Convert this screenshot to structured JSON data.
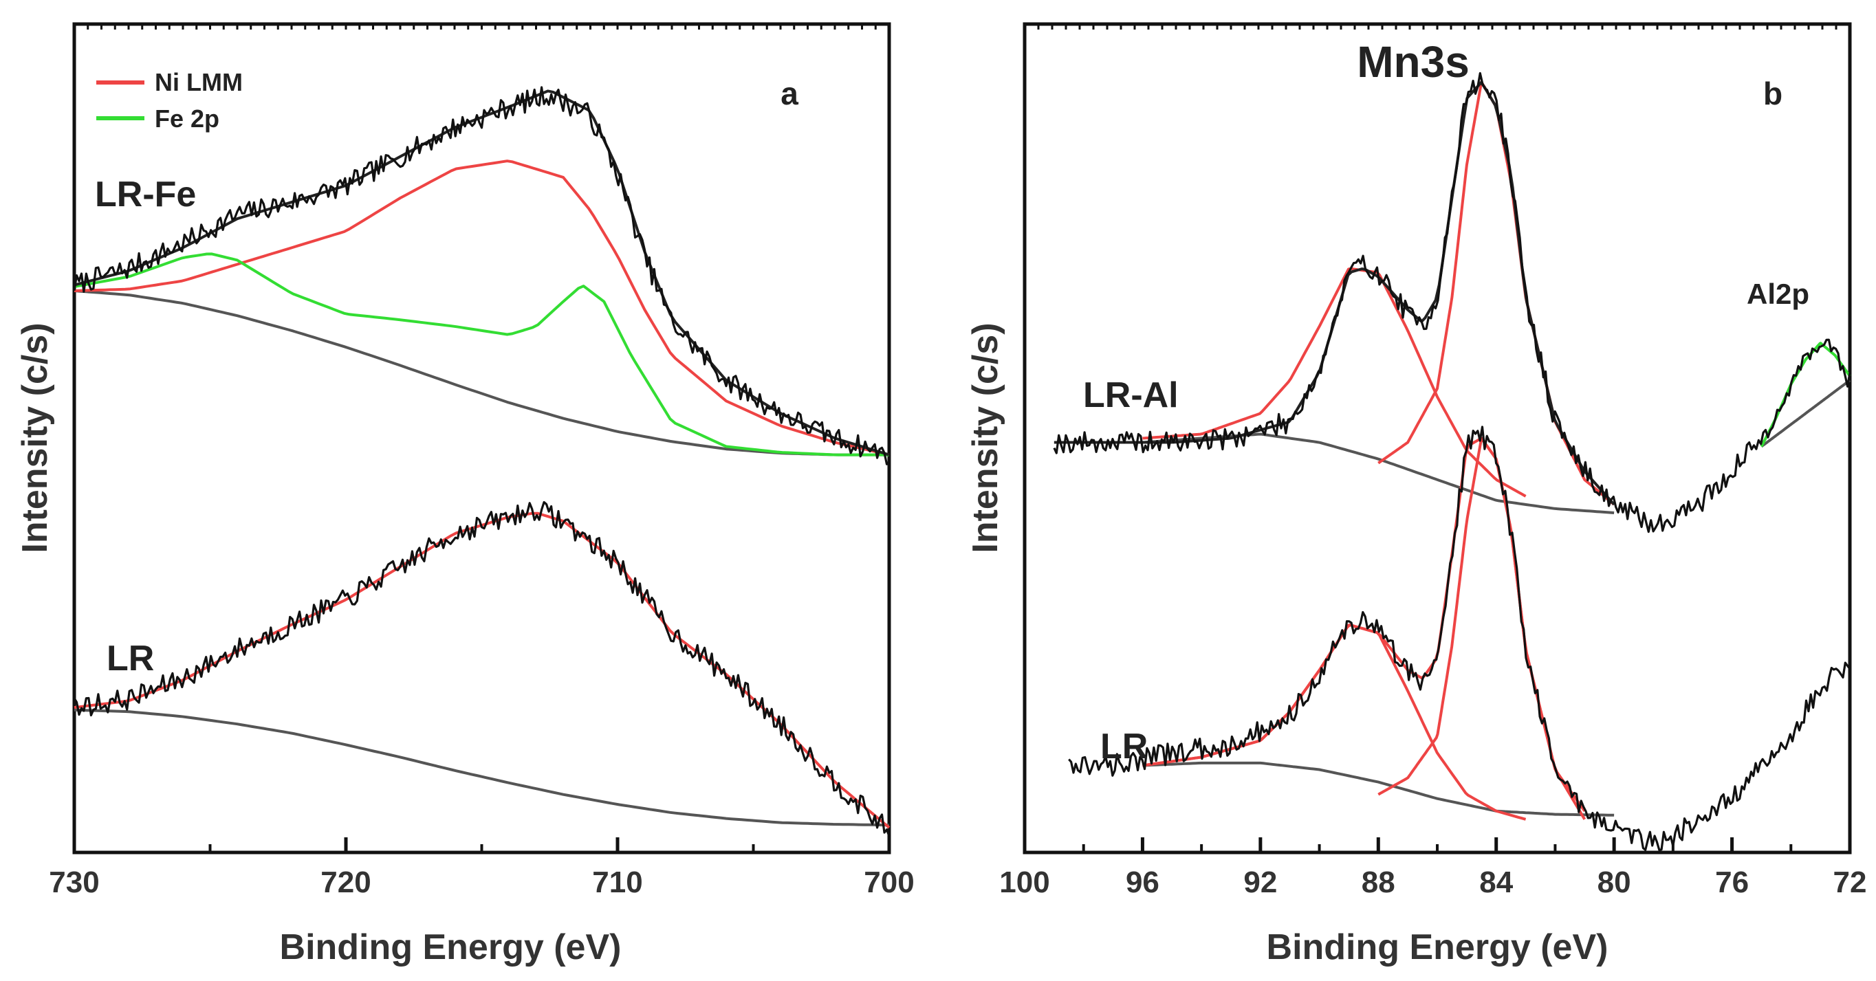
{
  "colors": {
    "data": "#111111",
    "fit": "#222222",
    "ni_lmm": "#ee4444",
    "fe_2p": "#33dd33",
    "background": "#555555",
    "frame": "#111111"
  },
  "chart_data": [
    {
      "type": "line",
      "panel": "a",
      "xlabel": "Binding Energy (eV)",
      "ylabel": "Intensity (c/s)",
      "xlim": [
        730,
        700
      ],
      "ylim": [
        0,
        100
      ],
      "xticks": [
        730,
        720,
        710,
        700
      ],
      "xtick_labels": [
        "730",
        "720",
        "710",
        "700"
      ],
      "legend": {
        "position": "top-left",
        "entries": [
          {
            "name": "Ni LMM",
            "color": "#ee4444"
          },
          {
            "name": "Fe 2p",
            "color": "#33dd33"
          }
        ]
      },
      "samples": [
        {
          "name": "LR-Fe",
          "offset": 44.5
        },
        {
          "name": "LR",
          "offset": 2.6
        }
      ],
      "series": [
        {
          "name": "LR-Fe data",
          "role": "data",
          "color": "#111111",
          "x": [
            730,
            728,
            726,
            724,
            722,
            720,
            718,
            716,
            714,
            712.5,
            711,
            710,
            709,
            708,
            706,
            704,
            702,
            700
          ],
          "y": [
            68.5,
            70.5,
            73.5,
            77,
            78.5,
            80.5,
            84,
            87.5,
            90,
            91.5,
            89,
            82,
            72,
            64,
            57,
            53,
            50,
            48
          ]
        },
        {
          "name": "LR-Fe fit",
          "role": "fit",
          "color": "#222222",
          "x": [
            730,
            728,
            726,
            724,
            722,
            720,
            718,
            716,
            714,
            712.5,
            711,
            710,
            709,
            708,
            706,
            704,
            702,
            700
          ],
          "y": [
            68.5,
            70.2,
            73,
            76.5,
            78.5,
            80.5,
            84,
            87.5,
            90,
            92,
            89.5,
            82.5,
            72.5,
            64.5,
            57,
            53,
            50,
            48
          ]
        },
        {
          "name": "Ni LMM",
          "role": "component",
          "color": "#ee4444",
          "x": [
            730,
            728,
            726,
            724,
            722,
            720,
            718,
            716,
            714,
            712,
            711,
            710,
            709,
            708,
            706,
            704,
            702,
            700
          ],
          "y": [
            67.8,
            68,
            69,
            71,
            73,
            75,
            79,
            82.5,
            83.5,
            81.5,
            77.5,
            72,
            65.5,
            60,
            54.5,
            51.5,
            49.5,
            48
          ]
        },
        {
          "name": "Fe 2p",
          "role": "component",
          "color": "#33dd33",
          "x": [
            730,
            728,
            726,
            725,
            724,
            722,
            720,
            718,
            716,
            714,
            713,
            712,
            711.3,
            710.5,
            709.5,
            708,
            706,
            704,
            702,
            700
          ],
          "y": [
            68.3,
            69.5,
            71.8,
            72.3,
            71.5,
            67.5,
            65,
            64.3,
            63.5,
            62.5,
            63.5,
            66.5,
            68.5,
            66.5,
            60,
            52,
            49,
            48.3,
            48,
            48
          ]
        },
        {
          "name": "LR-Fe background",
          "role": "background",
          "color": "#555555",
          "x": [
            730,
            728,
            726,
            724,
            722,
            720,
            718,
            716,
            714,
            712,
            710,
            708,
            706,
            704,
            702,
            700
          ],
          "y": [
            67.8,
            67.3,
            66.3,
            64.8,
            63,
            61,
            58.8,
            56.5,
            54.3,
            52.4,
            50.8,
            49.6,
            48.7,
            48.2,
            48,
            48
          ]
        },
        {
          "name": "LR data",
          "role": "data",
          "color": "#111111",
          "x": [
            730,
            728,
            726,
            724,
            722,
            720,
            718,
            716,
            714,
            713,
            712,
            710,
            708,
            706,
            704,
            702,
            700
          ],
          "y": [
            17.5,
            18.5,
            21,
            24.5,
            27.5,
            30.5,
            34.5,
            38.5,
            40.5,
            41.5,
            40,
            35,
            26.5,
            21.5,
            15.5,
            8.5,
            2.5
          ]
        },
        {
          "name": "LR fit",
          "role": "fit",
          "color": "#ee4444",
          "x": [
            730,
            728,
            726,
            724,
            722,
            720,
            718,
            716,
            714,
            713,
            712,
            710,
            708,
            706,
            704,
            702,
            700
          ],
          "y": [
            17.5,
            18.3,
            20.8,
            24.3,
            27.5,
            30.5,
            34.5,
            38.5,
            40.5,
            41,
            40,
            35,
            26.5,
            21.5,
            15.5,
            8.5,
            3
          ]
        },
        {
          "name": "LR background",
          "role": "background",
          "color": "#555555",
          "x": [
            730,
            728,
            726,
            724,
            722,
            720,
            718,
            716,
            714,
            712,
            710,
            708,
            706,
            704,
            702,
            700
          ],
          "y": [
            17.2,
            17,
            16.4,
            15.5,
            14.4,
            13,
            11.5,
            9.9,
            8.4,
            7,
            5.8,
            4.8,
            4.1,
            3.6,
            3.4,
            3.3
          ]
        }
      ]
    },
    {
      "type": "line",
      "panel": "b",
      "title": "Mn3s",
      "xlabel": "Binding Energy (eV)",
      "ylabel": "Intensity (c/s)",
      "xlim": [
        100,
        72
      ],
      "ylim": [
        0,
        100
      ],
      "xticks": [
        100,
        96,
        92,
        88,
        84,
        80,
        76,
        72
      ],
      "xtick_labels": [
        "100",
        "96",
        "92",
        "88",
        "84",
        "80",
        "76",
        "72"
      ],
      "samples": [
        {
          "name": "LR-Al",
          "offset": 49.5
        },
        {
          "name": "LR",
          "offset": 6
        }
      ],
      "annotations": [
        {
          "text": "Al2p",
          "x": 73.2
        }
      ],
      "series": [
        {
          "name": "LR-Al data",
          "role": "data",
          "color": "#111111",
          "x": [
            99,
            97,
            95,
            93,
            91,
            90,
            89,
            88.5,
            88,
            87,
            86.5,
            86,
            85.5,
            85,
            84.5,
            84,
            83.5,
            83,
            82,
            81,
            80,
            79,
            78.5,
            78,
            77,
            76,
            75,
            74,
            73.5,
            73,
            72.5,
            72
          ],
          "y": [
            49.5,
            49.5,
            49.5,
            50,
            52,
            58,
            70,
            71,
            70,
            65,
            63.5,
            67,
            79,
            92,
            93,
            91,
            82,
            67,
            52,
            46,
            42,
            40,
            39.5,
            40.5,
            42.5,
            46,
            50,
            56,
            60,
            62,
            60,
            57
          ]
        },
        {
          "name": "LR-Al fit",
          "role": "fit",
          "color": "#222222",
          "x": [
            99,
            97,
            95,
            93,
            91,
            90,
            89,
            88.5,
            88,
            87,
            86.5,
            86,
            85.5,
            85,
            84.5,
            84,
            83.5,
            83,
            82,
            81,
            80
          ],
          "y": [
            49.5,
            49.5,
            49.5,
            50,
            52,
            58,
            70,
            70.5,
            69.5,
            65.5,
            64,
            67,
            79,
            91,
            93,
            90,
            82,
            67,
            52,
            46,
            42
          ]
        },
        {
          "name": "LR-Al peak 1",
          "role": "component",
          "color": "#ee4444",
          "x": [
            96,
            94,
            92,
            91,
            90,
            89,
            88,
            87,
            86,
            85,
            84,
            83
          ],
          "y": [
            50,
            50.5,
            53,
            57,
            63.5,
            70.5,
            70,
            63,
            55,
            48.5,
            45,
            43
          ]
        },
        {
          "name": "LR-Al peak 2",
          "role": "component",
          "color": "#ee4444",
          "x": [
            88,
            87,
            86,
            85.5,
            85,
            84.5,
            84,
            83.5,
            83,
            82,
            81,
            80
          ],
          "y": [
            47,
            49.5,
            56,
            67,
            83,
            93,
            90,
            81,
            67,
            52,
            45,
            42
          ]
        },
        {
          "name": "Al2p",
          "role": "component",
          "color": "#33dd33",
          "x": [
            75,
            74.5,
            74,
            73.5,
            73,
            72.5,
            72
          ],
          "y": [
            49,
            52.5,
            56.5,
            59.5,
            61.5,
            60,
            57.5
          ]
        },
        {
          "name": "LR-Al background",
          "role": "background",
          "color": "#555555",
          "x": [
            99,
            96,
            94,
            92,
            90,
            88,
            86,
            84,
            82,
            80
          ],
          "y": [
            49.5,
            49.5,
            50,
            50.5,
            49.5,
            47.5,
            45,
            42.5,
            41.5,
            41
          ]
        },
        {
          "name": "LR-Al Al2p background",
          "role": "background",
          "color": "#555555",
          "x": [
            75,
            73.5,
            72
          ],
          "y": [
            49,
            53,
            57
          ]
        },
        {
          "name": "LR data",
          "role": "data",
          "color": "#111111",
          "x": [
            98.5,
            97,
            95,
            93,
            91,
            90,
            89,
            88.5,
            88,
            87,
            86.5,
            86,
            85.5,
            85,
            84.5,
            84,
            83.5,
            83,
            82,
            81,
            80,
            79,
            78.5,
            78,
            76,
            74,
            73,
            72
          ],
          "y": [
            10.5,
            10.5,
            12,
            13,
            16.5,
            21.5,
            27.5,
            28,
            27,
            22,
            20.5,
            23.5,
            36,
            49.5,
            50.5,
            48,
            39,
            24.5,
            10,
            5,
            3,
            1.5,
            1.5,
            2,
            6.5,
            14,
            20,
            23
          ]
        },
        {
          "name": "LR fit",
          "role": "fit",
          "color": "#ee4444",
          "x": [
            96,
            94,
            92,
            91,
            90,
            89,
            88,
            87,
            86.5,
            86,
            85.5,
            85,
            84.5,
            84,
            83.5,
            83,
            82,
            81
          ],
          "y": [
            10.5,
            11.5,
            13.5,
            17,
            22,
            27.5,
            26.5,
            22,
            21,
            23.5,
            36,
            49,
            50,
            47.5,
            39,
            24.5,
            10,
            5
          ]
        },
        {
          "name": "LR peak 1",
          "role": "component",
          "color": "#ee4444",
          "x": [
            96,
            94,
            92,
            91,
            90,
            89,
            88,
            87,
            86,
            85,
            84,
            83
          ],
          "y": [
            10.5,
            11.5,
            13.5,
            17,
            22,
            27.5,
            26.5,
            19.5,
            12,
            7,
            5,
            4
          ]
        },
        {
          "name": "LR peak 2",
          "role": "component",
          "color": "#ee4444",
          "x": [
            88,
            87,
            86,
            85.5,
            85,
            84.5,
            84,
            83.5,
            83,
            82,
            81
          ],
          "y": [
            7,
            9,
            14,
            25,
            40,
            50,
            47.5,
            39,
            24.5,
            10,
            4
          ]
        },
        {
          "name": "LR background",
          "role": "background",
          "color": "#555555",
          "x": [
            96,
            94,
            92,
            90,
            88,
            86,
            84,
            82,
            80
          ],
          "y": [
            10.5,
            10.8,
            10.8,
            10,
            8.5,
            6.5,
            5,
            4.6,
            4.5
          ]
        }
      ]
    }
  ]
}
